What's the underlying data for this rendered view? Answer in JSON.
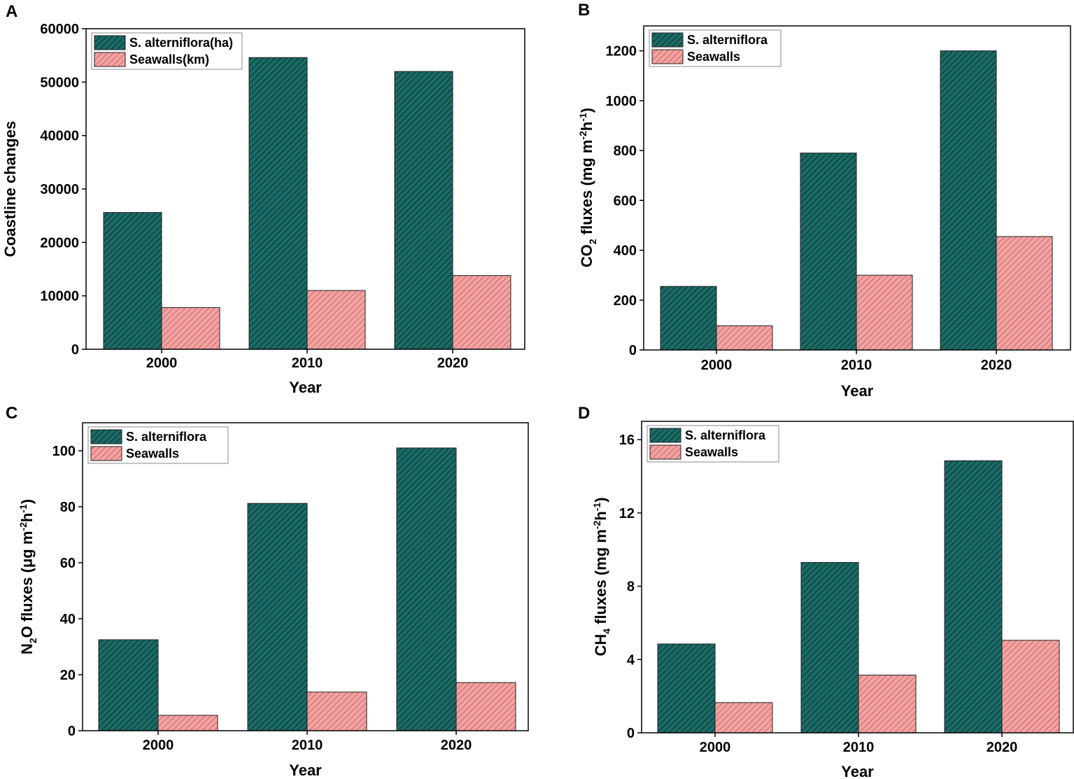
{
  "colors": {
    "s_alterniflora": "#1b6b66",
    "s_alterniflora_hatch": "#0a2f2c",
    "seawalls": "#f2a3a3",
    "seawalls_hatch": "#c0504d"
  },
  "chart_data": [
    {
      "panel": "A",
      "type": "bar",
      "categories": [
        "2000",
        "2010",
        "2020"
      ],
      "series": [
        {
          "name": "S. alterniflora(ha)",
          "values": [
            25600,
            54600,
            52000
          ]
        },
        {
          "name": "Seawalls(km)",
          "values": [
            7800,
            11000,
            13800
          ]
        }
      ],
      "xlabel": "Year",
      "ylabel": "Coastline changes",
      "ylim": [
        0,
        60000
      ],
      "yticks": [
        "0",
        "10000",
        "20000",
        "30000",
        "40000",
        "50000",
        "60000"
      ],
      "legend": "top-left"
    },
    {
      "panel": "B",
      "type": "bar",
      "categories": [
        "2000",
        "2010",
        "2020"
      ],
      "series": [
        {
          "name": "S. alterniflora",
          "values": [
            255,
            790,
            1200
          ]
        },
        {
          "name": "Seawalls",
          "values": [
            97,
            300,
            455
          ]
        }
      ],
      "xlabel": "Year",
      "ylabel_pre": "CO",
      "ylabel_sub": "2",
      "ylabel_mid": " fluxes (mg m",
      "ylabel_sup1": "-2",
      "ylabel_h": "h",
      "ylabel_sup2": "-1",
      "ylabel_post": ")",
      "ylim": [
        0,
        1300
      ],
      "yticks": [
        "0",
        "200",
        "400",
        "600",
        "800",
        "1000",
        "1200"
      ],
      "legend": "top-left"
    },
    {
      "panel": "C",
      "type": "bar",
      "categories": [
        "2000",
        "2010",
        "2020"
      ],
      "series": [
        {
          "name": "S. alterniflora",
          "values": [
            32.5,
            81.2,
            101
          ]
        },
        {
          "name": "Seawalls",
          "values": [
            5.5,
            13.8,
            17.2
          ]
        }
      ],
      "xlabel": "Year",
      "ylabel_pre": "N",
      "ylabel_sub": "2",
      "ylabel_mid": "O fluxes (μg m",
      "ylabel_sup1": "-2",
      "ylabel_h": "h",
      "ylabel_sup2": "-1",
      "ylabel_post": ")",
      "ylim": [
        0,
        110
      ],
      "yticks": [
        "0",
        "20",
        "40",
        "60",
        "80",
        "100"
      ],
      "legend": "top-left"
    },
    {
      "panel": "D",
      "type": "bar",
      "categories": [
        "2000",
        "2010",
        "2020"
      ],
      "series": [
        {
          "name": "S. alterniflora",
          "values": [
            4.85,
            9.3,
            14.85
          ]
        },
        {
          "name": "Seawalls",
          "values": [
            1.65,
            3.15,
            5.05
          ]
        }
      ],
      "xlabel": "Year",
      "ylabel_pre": "CH",
      "ylabel_sub": "4",
      "ylabel_mid": " fluxes (mg m",
      "ylabel_sup1": "-2",
      "ylabel_h": "h",
      "ylabel_sup2": "-1",
      "ylabel_post": ")",
      "ylim": [
        0,
        17
      ],
      "yticks": [
        "0",
        "4",
        "8",
        "12",
        "16"
      ],
      "legend": "top-left"
    }
  ]
}
